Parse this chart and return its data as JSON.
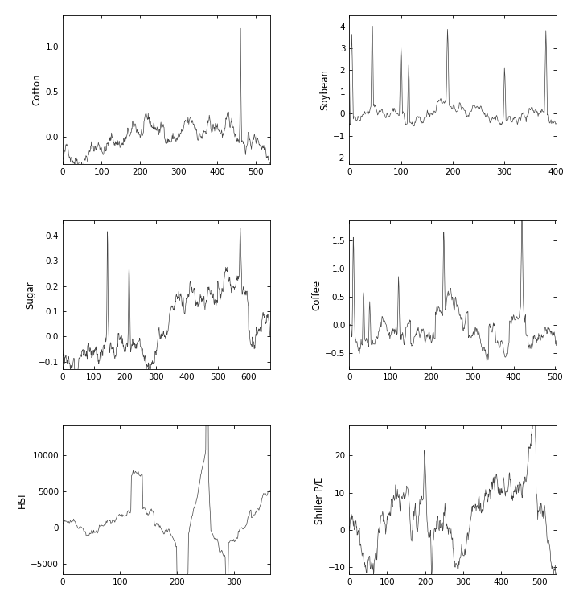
{
  "panels": [
    {
      "label": "Cotton",
      "n": 537,
      "xlim": [
        0,
        537
      ],
      "xticks": [
        0,
        100,
        200,
        300,
        400,
        500
      ],
      "ylim": [
        -0.3,
        1.35
      ],
      "yticks": [
        0.0,
        0.5,
        1.0
      ],
      "seed": 42
    },
    {
      "label": "Soybean",
      "n": 401,
      "xlim": [
        0,
        401
      ],
      "xticks": [
        0,
        100,
        200,
        300,
        400
      ],
      "ylim": [
        -2.3,
        4.5
      ],
      "yticks": [
        -2,
        -1,
        0,
        1,
        2,
        3,
        4
      ],
      "seed": 43
    },
    {
      "label": "Sugar",
      "n": 670,
      "xlim": [
        0,
        670
      ],
      "xticks": [
        0,
        100,
        200,
        300,
        400,
        500,
        600
      ],
      "ylim": [
        -0.13,
        0.46
      ],
      "yticks": [
        -0.1,
        0.0,
        0.1,
        0.2,
        0.3,
        0.4
      ],
      "seed": 44
    },
    {
      "label": "Coffee",
      "n": 505,
      "xlim": [
        0,
        505
      ],
      "xticks": [
        0,
        100,
        200,
        300,
        400,
        500
      ],
      "ylim": [
        -0.78,
        1.85
      ],
      "yticks": [
        -0.5,
        0.0,
        0.5,
        1.0,
        1.5
      ],
      "seed": 45
    },
    {
      "label": "HSI",
      "n": 363,
      "xlim": [
        0,
        363
      ],
      "xticks": [
        0,
        100,
        200,
        300
      ],
      "ylim": [
        -6500,
        14000
      ],
      "yticks": [
        -5000,
        0,
        5000,
        10000
      ],
      "seed": 46
    },
    {
      "label": "Shiller P/E",
      "n": 546,
      "xlim": [
        0,
        546
      ],
      "xticks": [
        0,
        100,
        200,
        300,
        400,
        500
      ],
      "ylim": [
        -12,
        28
      ],
      "yticks": [
        -10,
        0,
        10,
        20
      ],
      "seed": 47
    }
  ],
  "line_color": "#444444",
  "line_width": 0.5,
  "bg_color": "#ffffff",
  "fig_width": 7.1,
  "fig_height": 7.56,
  "dpi": 100
}
